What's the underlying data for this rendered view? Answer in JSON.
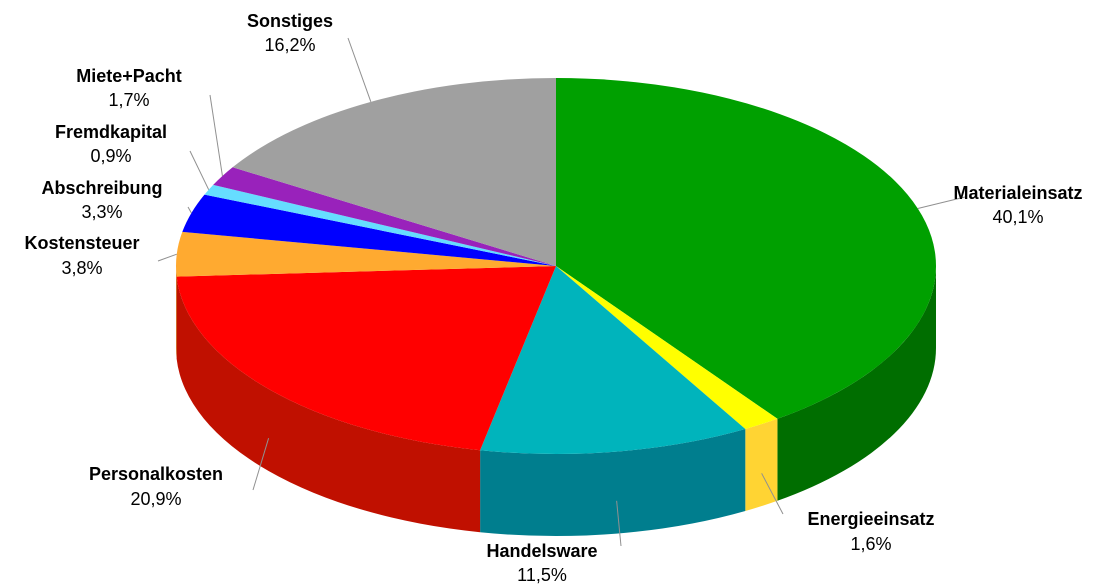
{
  "chart_data": {
    "type": "pie",
    "title": "",
    "unit": "%",
    "slices": [
      {
        "label": "Materialeinsatz",
        "value": 40.1,
        "value_text": "40,1%",
        "color": "#00a000",
        "side_color": "#006e00"
      },
      {
        "label": "Energieeinsatz",
        "value": 1.6,
        "value_text": "1,6%",
        "color": "#ffff00",
        "side_color": "#ffd433"
      },
      {
        "label": "Handelsware",
        "value": 11.5,
        "value_text": "11,5%",
        "color": "#00b4bc",
        "side_color": "#007e8e"
      },
      {
        "label": "Personalkosten",
        "value": 20.9,
        "value_text": "20,9%",
        "color": "#ff0000",
        "side_color": "#c01000"
      },
      {
        "label": "Kostensteuer",
        "value": 3.8,
        "value_text": "3,8%",
        "color": "#ffaa30",
        "side_color": "#d08020"
      },
      {
        "label": "Abschreibung",
        "value": 3.3,
        "value_text": "3,3%",
        "color": "#0000ff",
        "side_color": "#0000a0"
      },
      {
        "label": "Fremdkapital",
        "value": 0.9,
        "value_text": "0,9%",
        "color": "#66ddff",
        "side_color": "#44aacc"
      },
      {
        "label": "Miete+Pacht",
        "value": 1.7,
        "value_text": "1,7%",
        "color": "#9922bb",
        "side_color": "#661188"
      },
      {
        "label": "Sonstiges",
        "value": 16.2,
        "value_text": "16,2%",
        "color": "#a0a0a0",
        "side_color": "#707070"
      }
    ],
    "start": "top",
    "direction": "clockwise",
    "style": "3d-tilted"
  }
}
